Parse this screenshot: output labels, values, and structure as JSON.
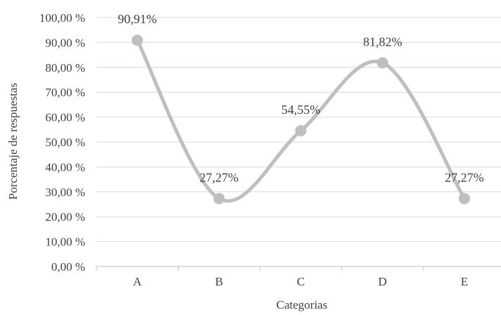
{
  "chart_data": {
    "type": "line",
    "smooth": true,
    "categories": [
      "A",
      "B",
      "C",
      "D",
      "E"
    ],
    "series": [
      {
        "values": [
          90.91,
          27.27,
          54.55,
          81.82,
          27.27
        ],
        "data_labels": [
          "90,91%",
          "27,27%",
          "54,55%",
          "81,82%",
          "27,27%"
        ],
        "color": "#bfbfbf"
      }
    ],
    "yticks": [
      0,
      10,
      20,
      30,
      40,
      50,
      60,
      70,
      80,
      90,
      100
    ],
    "ytick_labels": [
      "0,00 %",
      "10,00 %",
      "20,00 %",
      "30,00 %",
      "40,00 %",
      "50,00 %",
      "60,00 %",
      "70,00 %",
      "80,00 %",
      "90,00 %",
      "100,00 %"
    ],
    "ylim": [
      0,
      100
    ],
    "xlabel": "Categorias",
    "ylabel": "Porcentaje de respuestas",
    "grid": "horizontal",
    "legend": "none",
    "colors": {
      "grid": "#d9d9d9",
      "axis": "#bfbfbf",
      "text": "#404040"
    }
  }
}
